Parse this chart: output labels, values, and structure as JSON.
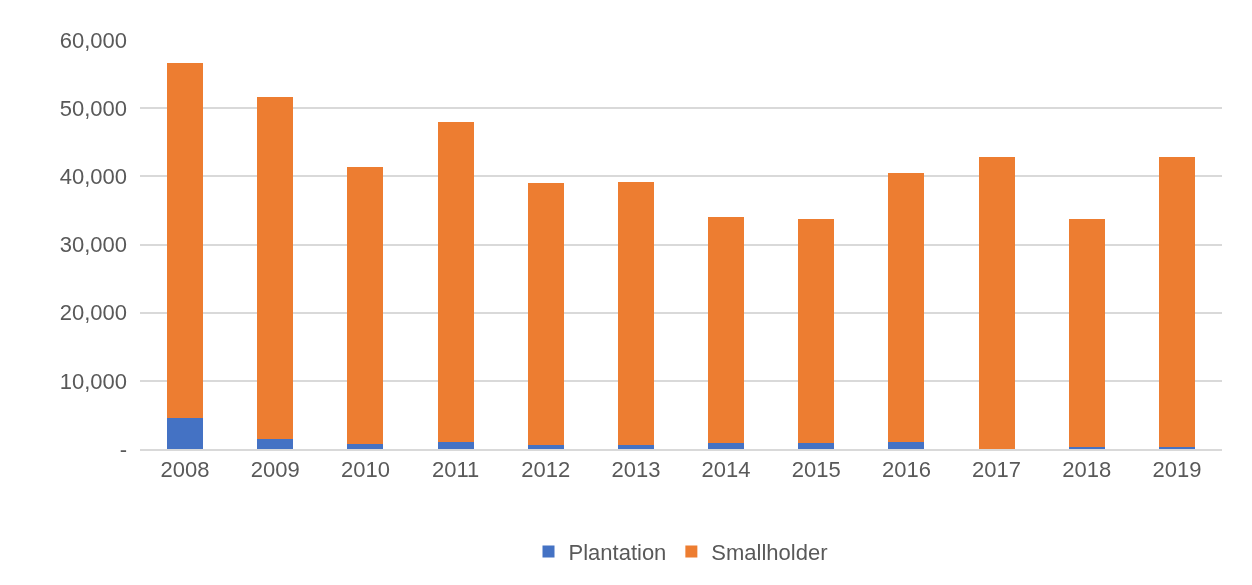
{
  "chart_data": {
    "type": "bar",
    "stacked": true,
    "categories": [
      "2008",
      "2009",
      "2010",
      "2011",
      "2012",
      "2013",
      "2014",
      "2015",
      "2016",
      "2017",
      "2018",
      "2019"
    ],
    "series": [
      {
        "name": "Plantation",
        "color": "#4472c4",
        "values": [
          4500,
          1400,
          800,
          1100,
          600,
          600,
          900,
          900,
          1100,
          0,
          300,
          300
        ]
      },
      {
        "name": "Smallholder",
        "color": "#ed7d31",
        "values": [
          52100,
          50200,
          40600,
          46800,
          38400,
          38600,
          33100,
          32800,
          39400,
          42900,
          33400,
          42600
        ]
      }
    ],
    "ylim": [
      0,
      60000
    ],
    "yticks": [
      {
        "value": 0,
        "label": "-"
      },
      {
        "value": 10000,
        "label": "10,000"
      },
      {
        "value": 20000,
        "label": "20,000"
      },
      {
        "value": 30000,
        "label": "30,000"
      },
      {
        "value": 40000,
        "label": "40,000"
      },
      {
        "value": 50000,
        "label": "50,000"
      },
      {
        "value": 60000,
        "label": "60,000"
      }
    ],
    "grid": "y",
    "legend": "bottom"
  }
}
